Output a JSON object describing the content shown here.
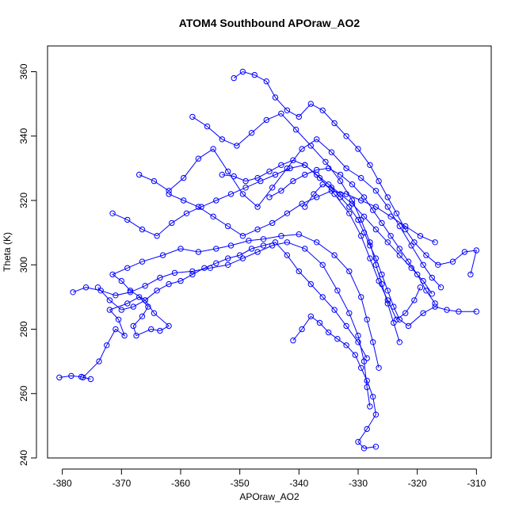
{
  "chart_data": {
    "type": "scatter",
    "title": "ATOM4 Southbound APOraw_AO2",
    "xlabel": "APOraw_AO2",
    "ylabel": "Theta (K)",
    "xlim": [
      -382.5,
      -307.5
    ],
    "ylim": [
      240,
      368
    ],
    "xticks": [
      -380,
      -370,
      -360,
      -350,
      -340,
      -330,
      -320,
      -310
    ],
    "yticks": [
      240,
      260,
      280,
      300,
      320,
      340,
      360
    ],
    "color": "#0000ff",
    "marker": "open-circle",
    "connected": true,
    "grid": false,
    "legend": false,
    "series": [
      {
        "points": [
          [
            -380.5,
            265
          ],
          [
            -378.5,
            265.5
          ],
          [
            -376.8,
            265.2
          ],
          [
            -375.2,
            264.5
          ],
          [
            -376.5,
            265
          ],
          [
            -373.8,
            270
          ],
          [
            -372.5,
            275
          ],
          [
            -371,
            280
          ],
          [
            -369.5,
            278
          ],
          [
            -370.5,
            283
          ],
          [
            -372,
            286
          ],
          [
            -369,
            288
          ],
          [
            -367,
            290
          ],
          [
            -365.5,
            287
          ],
          [
            -366.5,
            284
          ],
          [
            -368,
            281
          ],
          [
            -367.5,
            278
          ],
          [
            -365,
            280
          ],
          [
            -363.5,
            279.5
          ],
          [
            -362,
            281
          ],
          [
            -364.5,
            285
          ],
          [
            -366,
            289
          ],
          [
            -368.5,
            292
          ],
          [
            -370,
            295
          ],
          [
            -371.5,
            297
          ],
          [
            -369,
            299
          ],
          [
            -366.5,
            301
          ],
          [
            -363,
            303
          ],
          [
            -360,
            305
          ],
          [
            -357,
            304
          ],
          [
            -354,
            305
          ],
          [
            -351.5,
            306
          ],
          [
            -348.5,
            307.5
          ],
          [
            -346,
            308
          ],
          [
            -343,
            309
          ],
          [
            -340,
            309.5
          ],
          [
            -337,
            307
          ],
          [
            -334,
            303
          ],
          [
            -331.5,
            298
          ],
          [
            -329.5,
            290
          ],
          [
            -328.5,
            283
          ],
          [
            -327.5,
            276
          ],
          [
            -326.5,
            268
          ]
        ]
      },
      {
        "points": [
          [
            -378.2,
            291.5
          ],
          [
            -376,
            293
          ],
          [
            -373.5,
            292
          ],
          [
            -371,
            290.5
          ],
          [
            -368.5,
            291.5
          ],
          [
            -366,
            293.5
          ],
          [
            -363.5,
            296
          ],
          [
            -361,
            297.5
          ],
          [
            -358,
            298
          ],
          [
            -355,
            299
          ],
          [
            -352,
            300
          ],
          [
            -349.5,
            302
          ],
          [
            -347,
            304
          ],
          [
            -344.5,
            306
          ],
          [
            -342,
            307
          ],
          [
            -339,
            305
          ],
          [
            -336,
            300
          ],
          [
            -333.5,
            292
          ],
          [
            -331.5,
            285
          ],
          [
            -330,
            278
          ],
          [
            -329,
            270
          ],
          [
            -328.5,
            262
          ],
          [
            -328,
            256
          ]
        ]
      },
      {
        "points": [
          [
            -371.5,
            316
          ],
          [
            -369,
            314
          ],
          [
            -366.5,
            311
          ],
          [
            -364,
            309
          ],
          [
            -361.5,
            313
          ],
          [
            -359,
            316
          ],
          [
            -356.5,
            318
          ],
          [
            -354,
            320
          ],
          [
            -351.5,
            322
          ],
          [
            -349,
            324
          ],
          [
            -346.5,
            326
          ],
          [
            -344,
            328
          ],
          [
            -341.5,
            330
          ],
          [
            -339,
            331
          ],
          [
            -336.5,
            327
          ],
          [
            -334,
            322
          ],
          [
            -331.5,
            316
          ],
          [
            -329.5,
            309
          ],
          [
            -328,
            302
          ],
          [
            -326.5,
            295
          ],
          [
            -325,
            289
          ],
          [
            -323.5,
            283
          ],
          [
            -322,
            285
          ],
          [
            -320.5,
            289
          ],
          [
            -319.5,
            293
          ]
        ]
      },
      {
        "points": [
          [
            -367,
            328
          ],
          [
            -364.5,
            326
          ],
          [
            -362,
            323
          ],
          [
            -359.5,
            327
          ],
          [
            -357,
            333
          ],
          [
            -354.5,
            336
          ],
          [
            -352,
            329
          ],
          [
            -349.5,
            322
          ],
          [
            -347,
            318
          ],
          [
            -344.5,
            324
          ],
          [
            -342,
            330
          ],
          [
            -339.5,
            336
          ],
          [
            -337,
            339
          ],
          [
            -334.5,
            335
          ],
          [
            -332,
            330
          ],
          [
            -329.5,
            327
          ],
          [
            -327,
            323
          ],
          [
            -325,
            318
          ],
          [
            -323,
            312
          ],
          [
            -321,
            306
          ],
          [
            -319,
            300
          ],
          [
            -317.5,
            296
          ],
          [
            -316,
            293
          ]
        ]
      },
      {
        "points": [
          [
            -351,
            358
          ],
          [
            -349.5,
            360
          ],
          [
            -347.5,
            359
          ],
          [
            -345.5,
            357
          ],
          [
            -344,
            352
          ],
          [
            -342,
            348
          ],
          [
            -340,
            346
          ],
          [
            -338,
            350
          ],
          [
            -336,
            348
          ],
          [
            -334,
            344
          ],
          [
            -332,
            340
          ],
          [
            -330,
            336
          ],
          [
            -328,
            331
          ],
          [
            -326.5,
            326
          ],
          [
            -325,
            321
          ],
          [
            -323.5,
            316
          ],
          [
            -322,
            311
          ],
          [
            -320.5,
            307
          ],
          [
            -318.5,
            303
          ],
          [
            -316.5,
            300
          ],
          [
            -314,
            301
          ],
          [
            -312,
            304
          ],
          [
            -310,
            304.5
          ],
          [
            -311,
            297
          ]
        ]
      },
      {
        "points": [
          [
            -358,
            346
          ],
          [
            -355.5,
            343
          ],
          [
            -353,
            339
          ],
          [
            -350.5,
            337
          ],
          [
            -348,
            341
          ],
          [
            -345.5,
            345
          ],
          [
            -343,
            347
          ],
          [
            -340.5,
            342
          ],
          [
            -338,
            337
          ],
          [
            -335.5,
            332
          ],
          [
            -333,
            326
          ],
          [
            -331,
            320
          ],
          [
            -329.5,
            314
          ],
          [
            -328,
            307
          ],
          [
            -327,
            300
          ],
          [
            -326,
            294
          ],
          [
            -325,
            288
          ],
          [
            -324,
            282
          ],
          [
            -323,
            276
          ]
        ]
      },
      {
        "points": [
          [
            -341,
            276.5
          ],
          [
            -339.5,
            280
          ],
          [
            -338,
            284
          ],
          [
            -336.5,
            282
          ],
          [
            -335,
            279
          ],
          [
            -333.5,
            277
          ],
          [
            -332,
            275
          ],
          [
            -330.5,
            272
          ],
          [
            -329.5,
            268
          ],
          [
            -328.5,
            264
          ],
          [
            -327.5,
            259
          ],
          [
            -327,
            253.5
          ],
          [
            -328.5,
            249
          ],
          [
            -330,
            245
          ],
          [
            -329,
            243
          ],
          [
            -327,
            243.5
          ]
        ]
      },
      {
        "points": [
          [
            -339,
            318
          ],
          [
            -337.5,
            322
          ],
          [
            -336,
            325
          ],
          [
            -334.5,
            324
          ],
          [
            -333,
            321
          ],
          [
            -331.5,
            318
          ],
          [
            -330,
            314
          ],
          [
            -329,
            310
          ],
          [
            -328,
            306
          ],
          [
            -327,
            302
          ],
          [
            -326,
            297
          ],
          [
            -325,
            292
          ],
          [
            -324,
            287
          ],
          [
            -323,
            283
          ],
          [
            -321.5,
            281
          ],
          [
            -319,
            285
          ],
          [
            -317,
            287
          ],
          [
            -315,
            286
          ],
          [
            -313,
            285.5
          ],
          [
            -310,
            285.5
          ]
        ]
      },
      {
        "points": [
          [
            -345,
            321
          ],
          [
            -343,
            323
          ],
          [
            -341,
            326
          ],
          [
            -339,
            328
          ],
          [
            -337,
            329.5
          ],
          [
            -335,
            330
          ],
          [
            -333,
            328
          ],
          [
            -331,
            325
          ],
          [
            -329,
            321
          ],
          [
            -327.5,
            317
          ],
          [
            -326,
            313
          ],
          [
            -324.5,
            309
          ],
          [
            -323,
            305
          ],
          [
            -321.5,
            301
          ],
          [
            -320,
            297
          ],
          [
            -318.5,
            292
          ],
          [
            -317,
            288
          ]
        ]
      },
      {
        "points": [
          [
            -362,
            322
          ],
          [
            -359.5,
            320
          ],
          [
            -357,
            318
          ],
          [
            -354.5,
            315
          ],
          [
            -352,
            312
          ],
          [
            -349.5,
            309
          ],
          [
            -347,
            311
          ],
          [
            -344.5,
            313
          ],
          [
            -342,
            316
          ],
          [
            -339.5,
            319
          ],
          [
            -337,
            321
          ],
          [
            -334.5,
            323
          ],
          [
            -332,
            322
          ],
          [
            -329.5,
            320
          ],
          [
            -327,
            318
          ],
          [
            -324.5,
            315
          ],
          [
            -322,
            312
          ],
          [
            -319.5,
            309
          ],
          [
            -317,
            307
          ]
        ]
      },
      {
        "points": [
          [
            -374,
            293
          ],
          [
            -372,
            289
          ],
          [
            -370,
            286
          ],
          [
            -368,
            287
          ],
          [
            -366,
            289
          ],
          [
            -364,
            292
          ],
          [
            -362,
            294
          ],
          [
            -360,
            295
          ],
          [
            -358,
            297
          ],
          [
            -356,
            299
          ],
          [
            -354,
            300.5
          ],
          [
            -352,
            302
          ],
          [
            -350,
            303
          ],
          [
            -348,
            305
          ],
          [
            -346,
            306
          ],
          [
            -344,
            307
          ],
          [
            -342,
            303
          ],
          [
            -340,
            298
          ],
          [
            -338,
            294
          ],
          [
            -336,
            290
          ],
          [
            -334,
            286
          ],
          [
            -332,
            281
          ],
          [
            -330,
            276
          ],
          [
            -328.5,
            271
          ]
        ]
      },
      {
        "points": [
          [
            -353,
            328
          ],
          [
            -351,
            327.5
          ],
          [
            -349,
            326
          ],
          [
            -347,
            327
          ],
          [
            -345,
            329
          ],
          [
            -343,
            331
          ],
          [
            -341,
            332.5
          ],
          [
            -339,
            331
          ],
          [
            -337,
            328
          ],
          [
            -335,
            325
          ],
          [
            -333,
            322
          ],
          [
            -331,
            319
          ],
          [
            -329,
            315
          ],
          [
            -327,
            311
          ],
          [
            -325,
            307
          ],
          [
            -323,
            303
          ],
          [
            -321,
            299
          ],
          [
            -319,
            295
          ],
          [
            -317.5,
            291
          ]
        ]
      }
    ]
  }
}
